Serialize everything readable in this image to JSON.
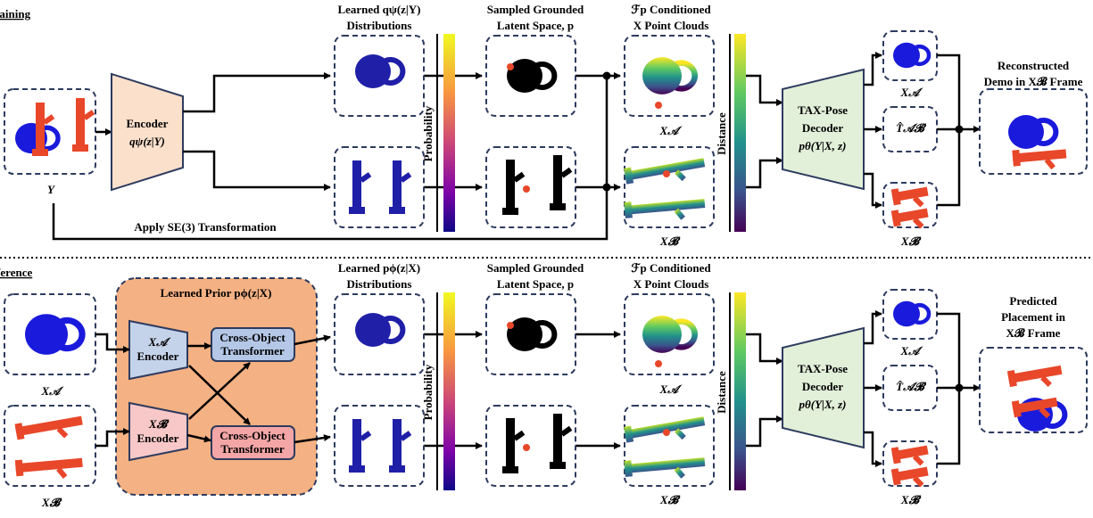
{
  "training": {
    "title": "Training",
    "learned_header": [
      "Learned qψ(z|Y)",
      "Distributions"
    ],
    "sampled_header": [
      "Sampled Grounded",
      "Latent Space, p"
    ],
    "conditioned_header": [
      "ℱp Conditioned",
      "X Point Clouds"
    ],
    "encoder": [
      "Encoder",
      "qψ(z|Y)"
    ],
    "input_label": "Y",
    "probability_label": "Probability",
    "distance_label": "Distance",
    "cloud_labels": [
      "X𝒜",
      "X𝓑"
    ],
    "decoder": [
      "TAX-Pose",
      "Decoder",
      "pθ(Y|X, z)"
    ],
    "outputs": [
      "X𝒜",
      "T̂𝒜𝓑",
      "X𝓑"
    ],
    "result_title": [
      "Reconstructed",
      "Demo in X𝓑 Frame"
    ],
    "transform_label": "Apply SE(3) Transformation"
  },
  "inference": {
    "title": "Inference",
    "input_labels": [
      "X𝒜",
      "X𝓑"
    ],
    "prior_title": "Learned Prior pϕ(z|X)",
    "encoders": [
      [
        "X𝒜",
        "Encoder"
      ],
      [
        "X𝓑",
        "Encoder"
      ]
    ],
    "transformers": [
      [
        "Cross-Object",
        "Transformer"
      ],
      [
        "Cross-Object",
        "Transformer"
      ]
    ],
    "learned_header": [
      "Learned pϕ(z|X)",
      "Distributions"
    ],
    "sampled_header": [
      "Sampled Grounded",
      "Latent Space, p"
    ],
    "conditioned_header": [
      "ℱp Conditioned",
      "X Point Clouds"
    ],
    "probability_label": "Probability",
    "distance_label": "Distance",
    "cloud_labels": [
      "X𝒜",
      "X𝓑"
    ],
    "decoder": [
      "TAX-Pose",
      "Decoder",
      "pθ(Y|X, z)"
    ],
    "outputs": [
      "X𝒜",
      "T̂𝒜𝓑",
      "X𝓑"
    ],
    "result_title": [
      "Predicted",
      "Placement in",
      "X𝓑 Frame"
    ]
  }
}
